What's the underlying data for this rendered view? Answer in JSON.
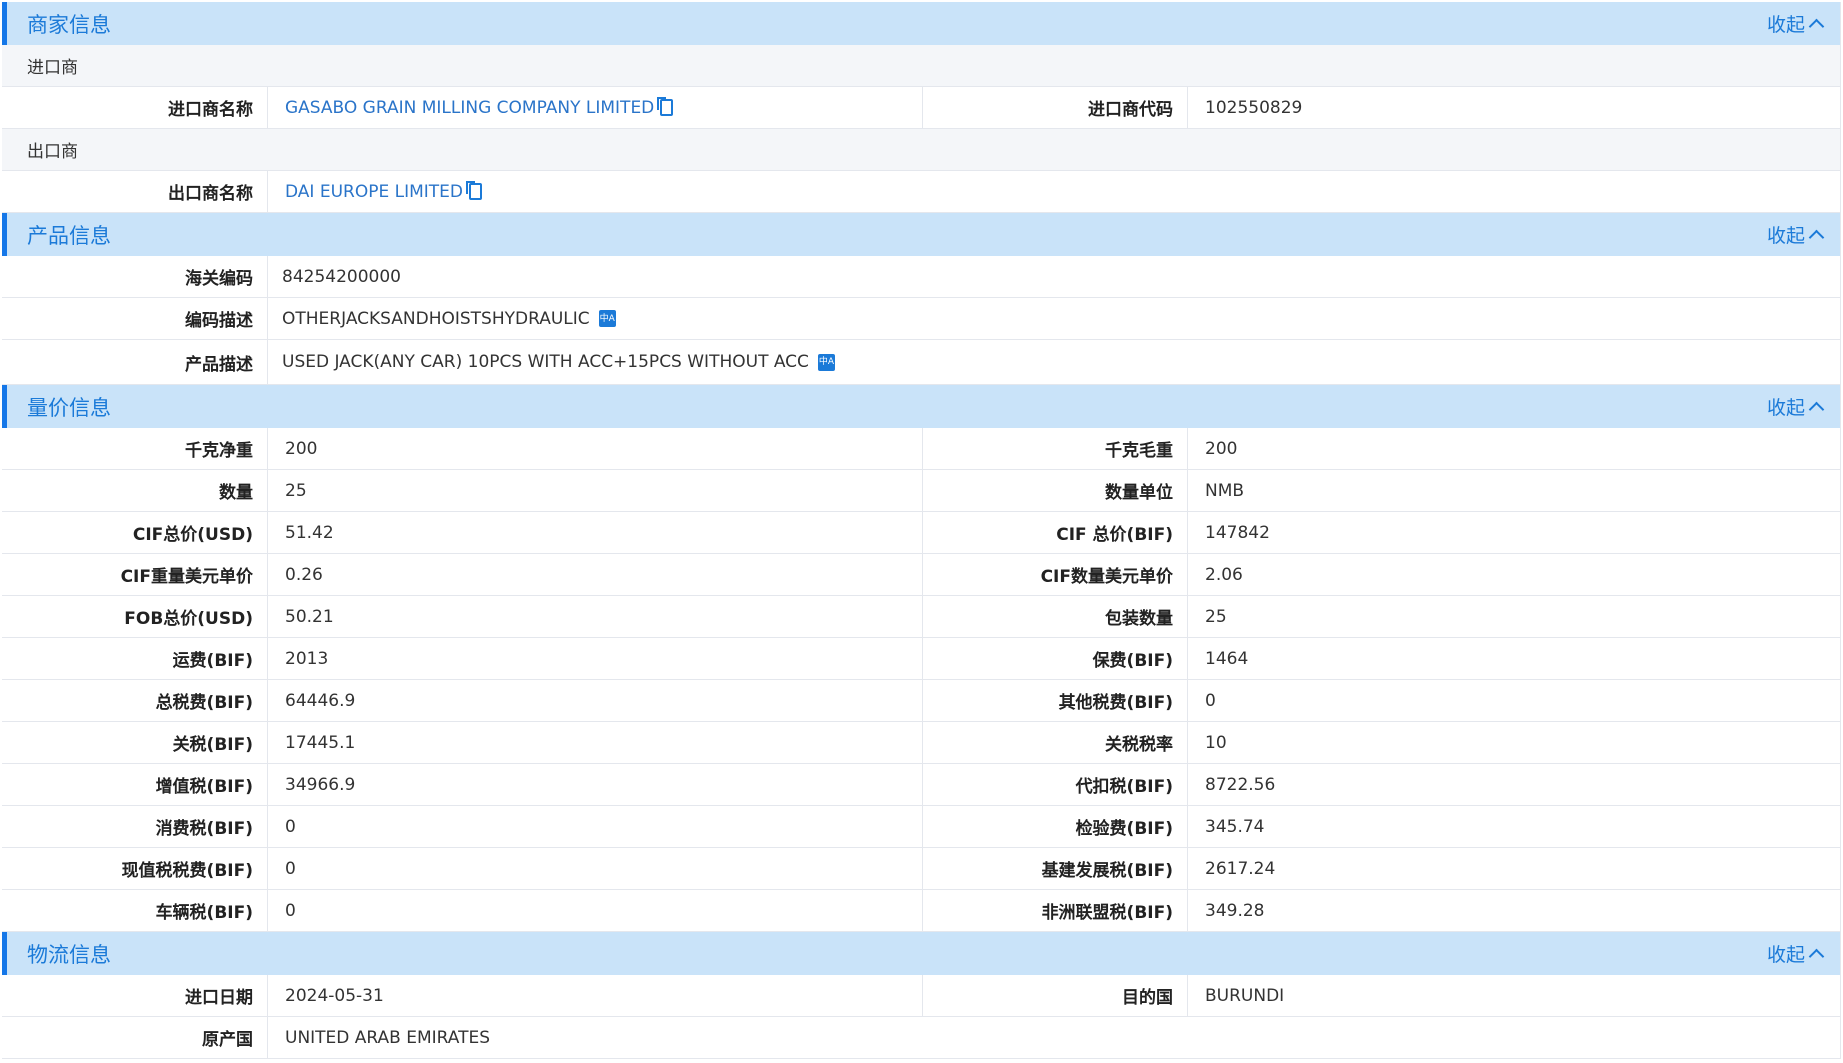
{
  "collapse_label": "收起",
  "merchant": {
    "title": "商家信息",
    "importer_heading": "进口商",
    "importer_name_label": "进口商名称",
    "importer_name": "GASABO GRAIN MILLING COMPANY LIMITED",
    "importer_code_label": "进口商代码",
    "importer_code": "102550829",
    "exporter_heading": "出口商",
    "exporter_name_label": "出口商名称",
    "exporter_name": "DAI EUROPE LIMITED"
  },
  "product": {
    "title": "产品信息",
    "rows": [
      {
        "label": "海关编码",
        "value": "84254200000",
        "translate": false
      },
      {
        "label": "编码描述",
        "value": "OTHERJACKSANDHOISTSHYDRAULIC",
        "translate": true
      },
      {
        "label": "产品描述",
        "value": "USED JACK(ANY CAR) 10PCS WITH ACC+15PCS WITHOUT ACC",
        "translate": true
      }
    ],
    "translate_icon_text": "中A"
  },
  "price": {
    "title": "量价信息",
    "rows": [
      {
        "l1": "千克净重",
        "v1": "200",
        "l2": "千克毛重",
        "v2": "200"
      },
      {
        "l1": "数量",
        "v1": "25",
        "l2": "数量单位",
        "v2": "NMB"
      },
      {
        "l1": "CIF总价(USD)",
        "v1": "51.42",
        "l2": "CIF 总价(BIF)",
        "v2": "147842"
      },
      {
        "l1": "CIF重量美元单价",
        "v1": "0.26",
        "l2": "CIF数量美元单价",
        "v2": "2.06"
      },
      {
        "l1": "FOB总价(USD)",
        "v1": "50.21",
        "l2": "包装数量",
        "v2": "25"
      },
      {
        "l1": "运费(BIF)",
        "v1": "2013",
        "l2": "保费(BIF)",
        "v2": "1464"
      },
      {
        "l1": "总税费(BIF)",
        "v1": "64446.9",
        "l2": "其他税费(BIF)",
        "v2": "0"
      },
      {
        "l1": "关税(BIF)",
        "v1": "17445.1",
        "l2": "关税税率",
        "v2": "10"
      },
      {
        "l1": "增值税(BIF)",
        "v1": "34966.9",
        "l2": "代扣税(BIF)",
        "v2": "8722.56"
      },
      {
        "l1": "消费税(BIF)",
        "v1": "0",
        "l2": "检验费(BIF)",
        "v2": "345.74"
      },
      {
        "l1": "现值税税费(BIF)",
        "v1": "0",
        "l2": "基建发展税(BIF)",
        "v2": "2617.24"
      },
      {
        "l1": "车辆税(BIF)",
        "v1": "0",
        "l2": "非洲联盟税(BIF)",
        "v2": "349.28"
      }
    ]
  },
  "logistics": {
    "title": "物流信息",
    "rows": [
      {
        "l1": "进口日期",
        "v1": "2024-05-31",
        "l2": "目的国",
        "v2": "BURUNDI"
      },
      {
        "l1": "原产国",
        "v1": "UNITED ARAB EMIRATES"
      }
    ]
  }
}
